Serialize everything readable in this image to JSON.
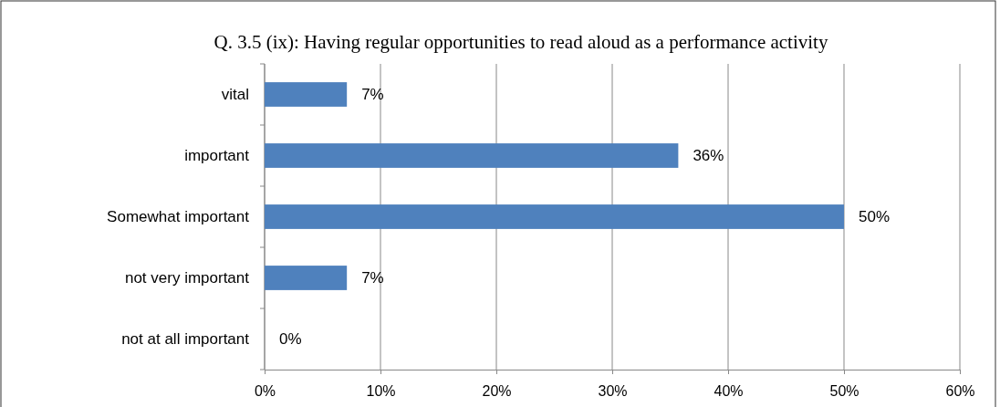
{
  "chart_data": {
    "type": "bar",
    "orientation": "horizontal",
    "title": "Q. 3.5 (ix): Having regular opportunities to read aloud as a performance activity",
    "categories": [
      "vital",
      "important",
      "Somewhat important",
      "not very important",
      "not at all important"
    ],
    "values": [
      7.1,
      35.7,
      50,
      7.1,
      0
    ],
    "value_labels": [
      "7%",
      "36%",
      "50%",
      "7%",
      "0%"
    ],
    "color": "#4f81bd",
    "grid": "x",
    "xlim": [
      0,
      60
    ],
    "xticks": [
      {
        "value": 0,
        "label": "0%"
      },
      {
        "value": 10,
        "label": "10%"
      },
      {
        "value": 20,
        "label": "20%"
      },
      {
        "value": 30,
        "label": "30%"
      },
      {
        "value": 40,
        "label": "40%"
      },
      {
        "value": 50,
        "label": "50%"
      },
      {
        "value": 60,
        "label": "60%"
      }
    ]
  }
}
